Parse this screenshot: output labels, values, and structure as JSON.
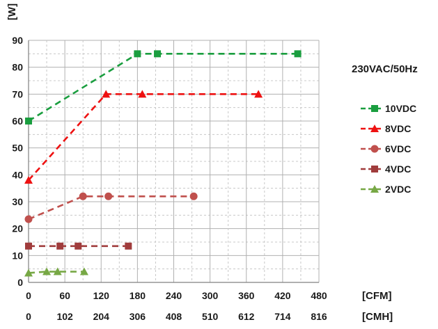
{
  "chart_data": {
    "type": "line",
    "ylabel": "[W]",
    "ylim": [
      0,
      90
    ],
    "yticks": [
      0,
      10,
      20,
      30,
      40,
      50,
      60,
      70,
      80,
      90
    ],
    "xlim": [
      0,
      480
    ],
    "xticks": [
      0,
      60,
      120,
      180,
      240,
      300,
      360,
      420,
      480
    ],
    "xticks_secondary": [
      "0",
      "102",
      "204",
      "306",
      "408",
      "510",
      "612",
      "714",
      "816"
    ],
    "xunit_cfm": "[CFM]",
    "xunit_cmh": "[CMH]",
    "annotation": "230VAC/50Hz",
    "grid": true,
    "legend_position": "right",
    "series": [
      {
        "name": "10VDC",
        "color": "#1a9e3f",
        "marker": "square",
        "x": [
          0,
          180,
          213,
          445
        ],
        "y": [
          60,
          85,
          85,
          85
        ]
      },
      {
        "name": "8VDC",
        "color": "#ee1111",
        "marker": "triangle",
        "x": [
          0,
          128,
          188,
          380
        ],
        "y": [
          38,
          70,
          70,
          70
        ]
      },
      {
        "name": "6VDC",
        "color": "#c0504d",
        "marker": "circle",
        "x": [
          0,
          90,
          132,
          273
        ],
        "y": [
          23.5,
          32,
          32,
          32
        ]
      },
      {
        "name": "4VDC",
        "color": "#a03c3c",
        "marker": "square",
        "x": [
          0,
          52,
          82,
          165
        ],
        "y": [
          13.5,
          13.5,
          13.5,
          13.5
        ]
      },
      {
        "name": "2VDC",
        "color": "#77a845",
        "marker": "triangle",
        "x": [
          0,
          30,
          48,
          92
        ],
        "y": [
          3.5,
          4,
          4,
          4
        ]
      }
    ]
  }
}
